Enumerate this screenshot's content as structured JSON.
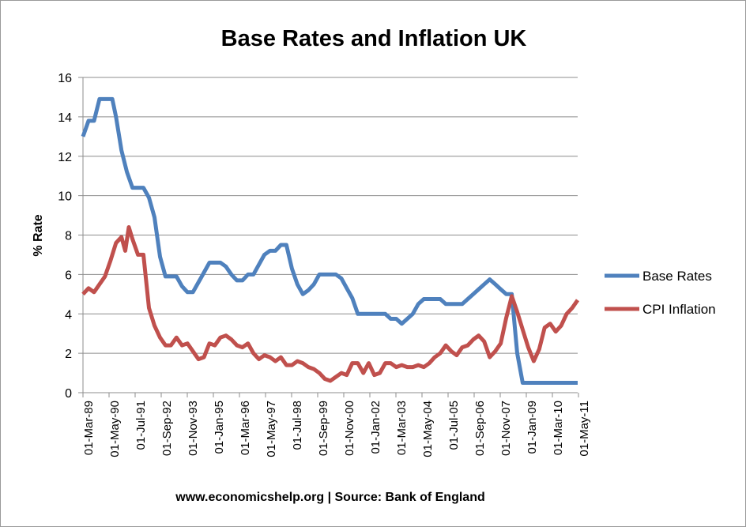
{
  "chart_data": {
    "type": "line",
    "title": "Base Rates and Inflation UK",
    "xlabel": "",
    "ylabel": "% Rate",
    "source": "www.economicshelp.org | Source: Bank of England",
    "ylim": [
      0,
      16
    ],
    "yticks": [
      0,
      2,
      4,
      6,
      8,
      10,
      12,
      14,
      16
    ],
    "grid": true,
    "legend": "right",
    "x_tick_labels": [
      "01-Mar-89",
      "01-May-90",
      "01-Jul-91",
      "01-Sep-92",
      "01-Nov-93",
      "01-Jan-95",
      "01-Mar-96",
      "01-May-97",
      "01-Jul-98",
      "01-Sep-99",
      "01-Nov-00",
      "01-Jan-02",
      "01-Mar-03",
      "01-May-04",
      "01-Jul-05",
      "01-Sep-06",
      "01-Nov-07",
      "01-Jan-09",
      "01-Mar-10",
      "01-May-11"
    ],
    "x_range": [
      "1989-03-01",
      "2011-09-01"
    ],
    "series": [
      {
        "name": "Base Rates",
        "color": "#4f81bd",
        "points": [
          [
            "1989-03-01",
            13.0
          ],
          [
            "1989-06-01",
            13.8
          ],
          [
            "1989-09-01",
            13.8
          ],
          [
            "1989-12-01",
            14.9
          ],
          [
            "1990-03-01",
            14.9
          ],
          [
            "1990-07-01",
            14.9
          ],
          [
            "1990-09-01",
            14.0
          ],
          [
            "1990-12-01",
            12.3
          ],
          [
            "1991-03-01",
            11.2
          ],
          [
            "1991-06-01",
            10.4
          ],
          [
            "1991-09-01",
            10.4
          ],
          [
            "1991-12-01",
            10.4
          ],
          [
            "1992-03-01",
            9.9
          ],
          [
            "1992-06-01",
            8.9
          ],
          [
            "1992-09-01",
            6.9
          ],
          [
            "1992-12-01",
            5.9
          ],
          [
            "1993-03-01",
            5.9
          ],
          [
            "1993-06-01",
            5.9
          ],
          [
            "1993-09-01",
            5.4
          ],
          [
            "1993-12-01",
            5.1
          ],
          [
            "1994-03-01",
            5.1
          ],
          [
            "1994-06-01",
            5.6
          ],
          [
            "1994-09-01",
            6.1
          ],
          [
            "1994-12-01",
            6.6
          ],
          [
            "1995-03-01",
            6.6
          ],
          [
            "1995-06-01",
            6.6
          ],
          [
            "1995-09-01",
            6.4
          ],
          [
            "1995-12-01",
            6.0
          ],
          [
            "1996-03-01",
            5.7
          ],
          [
            "1996-06-01",
            5.7
          ],
          [
            "1996-09-01",
            6.0
          ],
          [
            "1996-12-01",
            6.0
          ],
          [
            "1997-03-01",
            6.5
          ],
          [
            "1997-06-01",
            7.0
          ],
          [
            "1997-09-01",
            7.2
          ],
          [
            "1997-12-01",
            7.2
          ],
          [
            "1998-03-01",
            7.5
          ],
          [
            "1998-06-01",
            7.5
          ],
          [
            "1998-09-01",
            6.3
          ],
          [
            "1998-12-01",
            5.5
          ],
          [
            "1999-03-01",
            5.0
          ],
          [
            "1999-06-01",
            5.2
          ],
          [
            "1999-09-01",
            5.5
          ],
          [
            "1999-12-01",
            6.0
          ],
          [
            "2000-03-01",
            6.0
          ],
          [
            "2000-06-01",
            6.0
          ],
          [
            "2000-09-01",
            6.0
          ],
          [
            "2000-12-01",
            5.8
          ],
          [
            "2001-03-01",
            5.3
          ],
          [
            "2001-06-01",
            4.8
          ],
          [
            "2001-09-01",
            4.0
          ],
          [
            "2001-12-01",
            4.0
          ],
          [
            "2002-03-01",
            4.0
          ],
          [
            "2002-06-01",
            4.0
          ],
          [
            "2002-09-01",
            4.0
          ],
          [
            "2002-12-01",
            4.0
          ],
          [
            "2003-03-01",
            3.75
          ],
          [
            "2003-06-01",
            3.75
          ],
          [
            "2003-09-01",
            3.5
          ],
          [
            "2003-12-01",
            3.75
          ],
          [
            "2004-03-01",
            4.0
          ],
          [
            "2004-06-01",
            4.5
          ],
          [
            "2004-09-01",
            4.75
          ],
          [
            "2004-12-01",
            4.75
          ],
          [
            "2005-03-01",
            4.75
          ],
          [
            "2005-06-01",
            4.75
          ],
          [
            "2005-09-01",
            4.5
          ],
          [
            "2005-12-01",
            4.5
          ],
          [
            "2006-03-01",
            4.5
          ],
          [
            "2006-06-01",
            4.5
          ],
          [
            "2006-09-01",
            4.75
          ],
          [
            "2006-12-01",
            5.0
          ],
          [
            "2007-03-01",
            5.25
          ],
          [
            "2007-06-01",
            5.5
          ],
          [
            "2007-09-01",
            5.75
          ],
          [
            "2007-12-01",
            5.5
          ],
          [
            "2008-03-01",
            5.25
          ],
          [
            "2008-06-01",
            5.0
          ],
          [
            "2008-09-01",
            5.0
          ],
          [
            "2008-12-01",
            2.0
          ],
          [
            "2009-03-01",
            0.5
          ],
          [
            "2009-06-01",
            0.5
          ],
          [
            "2009-09-01",
            0.5
          ],
          [
            "2009-12-01",
            0.5
          ],
          [
            "2010-06-01",
            0.5
          ],
          [
            "2010-12-01",
            0.5
          ],
          [
            "2011-06-01",
            0.5
          ],
          [
            "2011-09-01",
            0.5
          ]
        ]
      },
      {
        "name": "CPI Inflation",
        "color": "#c0504d",
        "points": [
          [
            "1989-03-01",
            5.0
          ],
          [
            "1989-06-01",
            5.3
          ],
          [
            "1989-09-01",
            5.1
          ],
          [
            "1989-12-01",
            5.5
          ],
          [
            "1990-03-01",
            5.9
          ],
          [
            "1990-06-01",
            6.7
          ],
          [
            "1990-09-01",
            7.6
          ],
          [
            "1990-12-01",
            7.9
          ],
          [
            "1991-02-01",
            7.2
          ],
          [
            "1991-04-01",
            8.4
          ],
          [
            "1991-06-01",
            7.8
          ],
          [
            "1991-09-01",
            7.0
          ],
          [
            "1991-12-01",
            7.0
          ],
          [
            "1992-03-01",
            4.3
          ],
          [
            "1992-06-01",
            3.4
          ],
          [
            "1992-09-01",
            2.8
          ],
          [
            "1992-12-01",
            2.4
          ],
          [
            "1993-03-01",
            2.4
          ],
          [
            "1993-06-01",
            2.8
          ],
          [
            "1993-09-01",
            2.4
          ],
          [
            "1993-12-01",
            2.5
          ],
          [
            "1994-03-01",
            2.1
          ],
          [
            "1994-06-01",
            1.7
          ],
          [
            "1994-09-01",
            1.8
          ],
          [
            "1994-12-01",
            2.5
          ],
          [
            "1995-03-01",
            2.4
          ],
          [
            "1995-06-01",
            2.8
          ],
          [
            "1995-09-01",
            2.9
          ],
          [
            "1995-12-01",
            2.7
          ],
          [
            "1996-03-01",
            2.4
          ],
          [
            "1996-06-01",
            2.3
          ],
          [
            "1996-09-01",
            2.5
          ],
          [
            "1996-12-01",
            2.0
          ],
          [
            "1997-03-01",
            1.7
          ],
          [
            "1997-06-01",
            1.9
          ],
          [
            "1997-09-01",
            1.8
          ],
          [
            "1997-12-01",
            1.6
          ],
          [
            "1998-03-01",
            1.8
          ],
          [
            "1998-06-01",
            1.4
          ],
          [
            "1998-09-01",
            1.4
          ],
          [
            "1998-12-01",
            1.6
          ],
          [
            "1999-03-01",
            1.5
          ],
          [
            "1999-06-01",
            1.3
          ],
          [
            "1999-09-01",
            1.2
          ],
          [
            "1999-12-01",
            1.0
          ],
          [
            "2000-03-01",
            0.7
          ],
          [
            "2000-06-01",
            0.6
          ],
          [
            "2000-09-01",
            0.8
          ],
          [
            "2000-12-01",
            1.0
          ],
          [
            "2001-03-01",
            0.9
          ],
          [
            "2001-06-01",
            1.5
          ],
          [
            "2001-09-01",
            1.5
          ],
          [
            "2001-12-01",
            1.0
          ],
          [
            "2002-03-01",
            1.5
          ],
          [
            "2002-06-01",
            0.9
          ],
          [
            "2002-09-01",
            1.0
          ],
          [
            "2002-12-01",
            1.5
          ],
          [
            "2003-03-01",
            1.5
          ],
          [
            "2003-06-01",
            1.3
          ],
          [
            "2003-09-01",
            1.4
          ],
          [
            "2003-12-01",
            1.3
          ],
          [
            "2004-03-01",
            1.3
          ],
          [
            "2004-06-01",
            1.4
          ],
          [
            "2004-09-01",
            1.3
          ],
          [
            "2004-12-01",
            1.5
          ],
          [
            "2005-03-01",
            1.8
          ],
          [
            "2005-06-01",
            2.0
          ],
          [
            "2005-09-01",
            2.4
          ],
          [
            "2005-12-01",
            2.1
          ],
          [
            "2006-03-01",
            1.9
          ],
          [
            "2006-06-01",
            2.3
          ],
          [
            "2006-09-01",
            2.4
          ],
          [
            "2006-12-01",
            2.7
          ],
          [
            "2007-03-01",
            2.9
          ],
          [
            "2007-06-01",
            2.6
          ],
          [
            "2007-09-01",
            1.8
          ],
          [
            "2007-12-01",
            2.1
          ],
          [
            "2008-03-01",
            2.5
          ],
          [
            "2008-06-01",
            3.8
          ],
          [
            "2008-09-01",
            4.9
          ],
          [
            "2008-12-01",
            4.1
          ],
          [
            "2009-03-01",
            3.2
          ],
          [
            "2009-06-01",
            2.3
          ],
          [
            "2009-09-01",
            1.6
          ],
          [
            "2009-12-01",
            2.2
          ],
          [
            "2010-03-01",
            3.3
          ],
          [
            "2010-06-01",
            3.5
          ],
          [
            "2010-09-01",
            3.1
          ],
          [
            "2010-12-01",
            3.4
          ],
          [
            "2011-03-01",
            4.0
          ],
          [
            "2011-06-01",
            4.3
          ],
          [
            "2011-09-01",
            4.7
          ]
        ]
      }
    ]
  }
}
